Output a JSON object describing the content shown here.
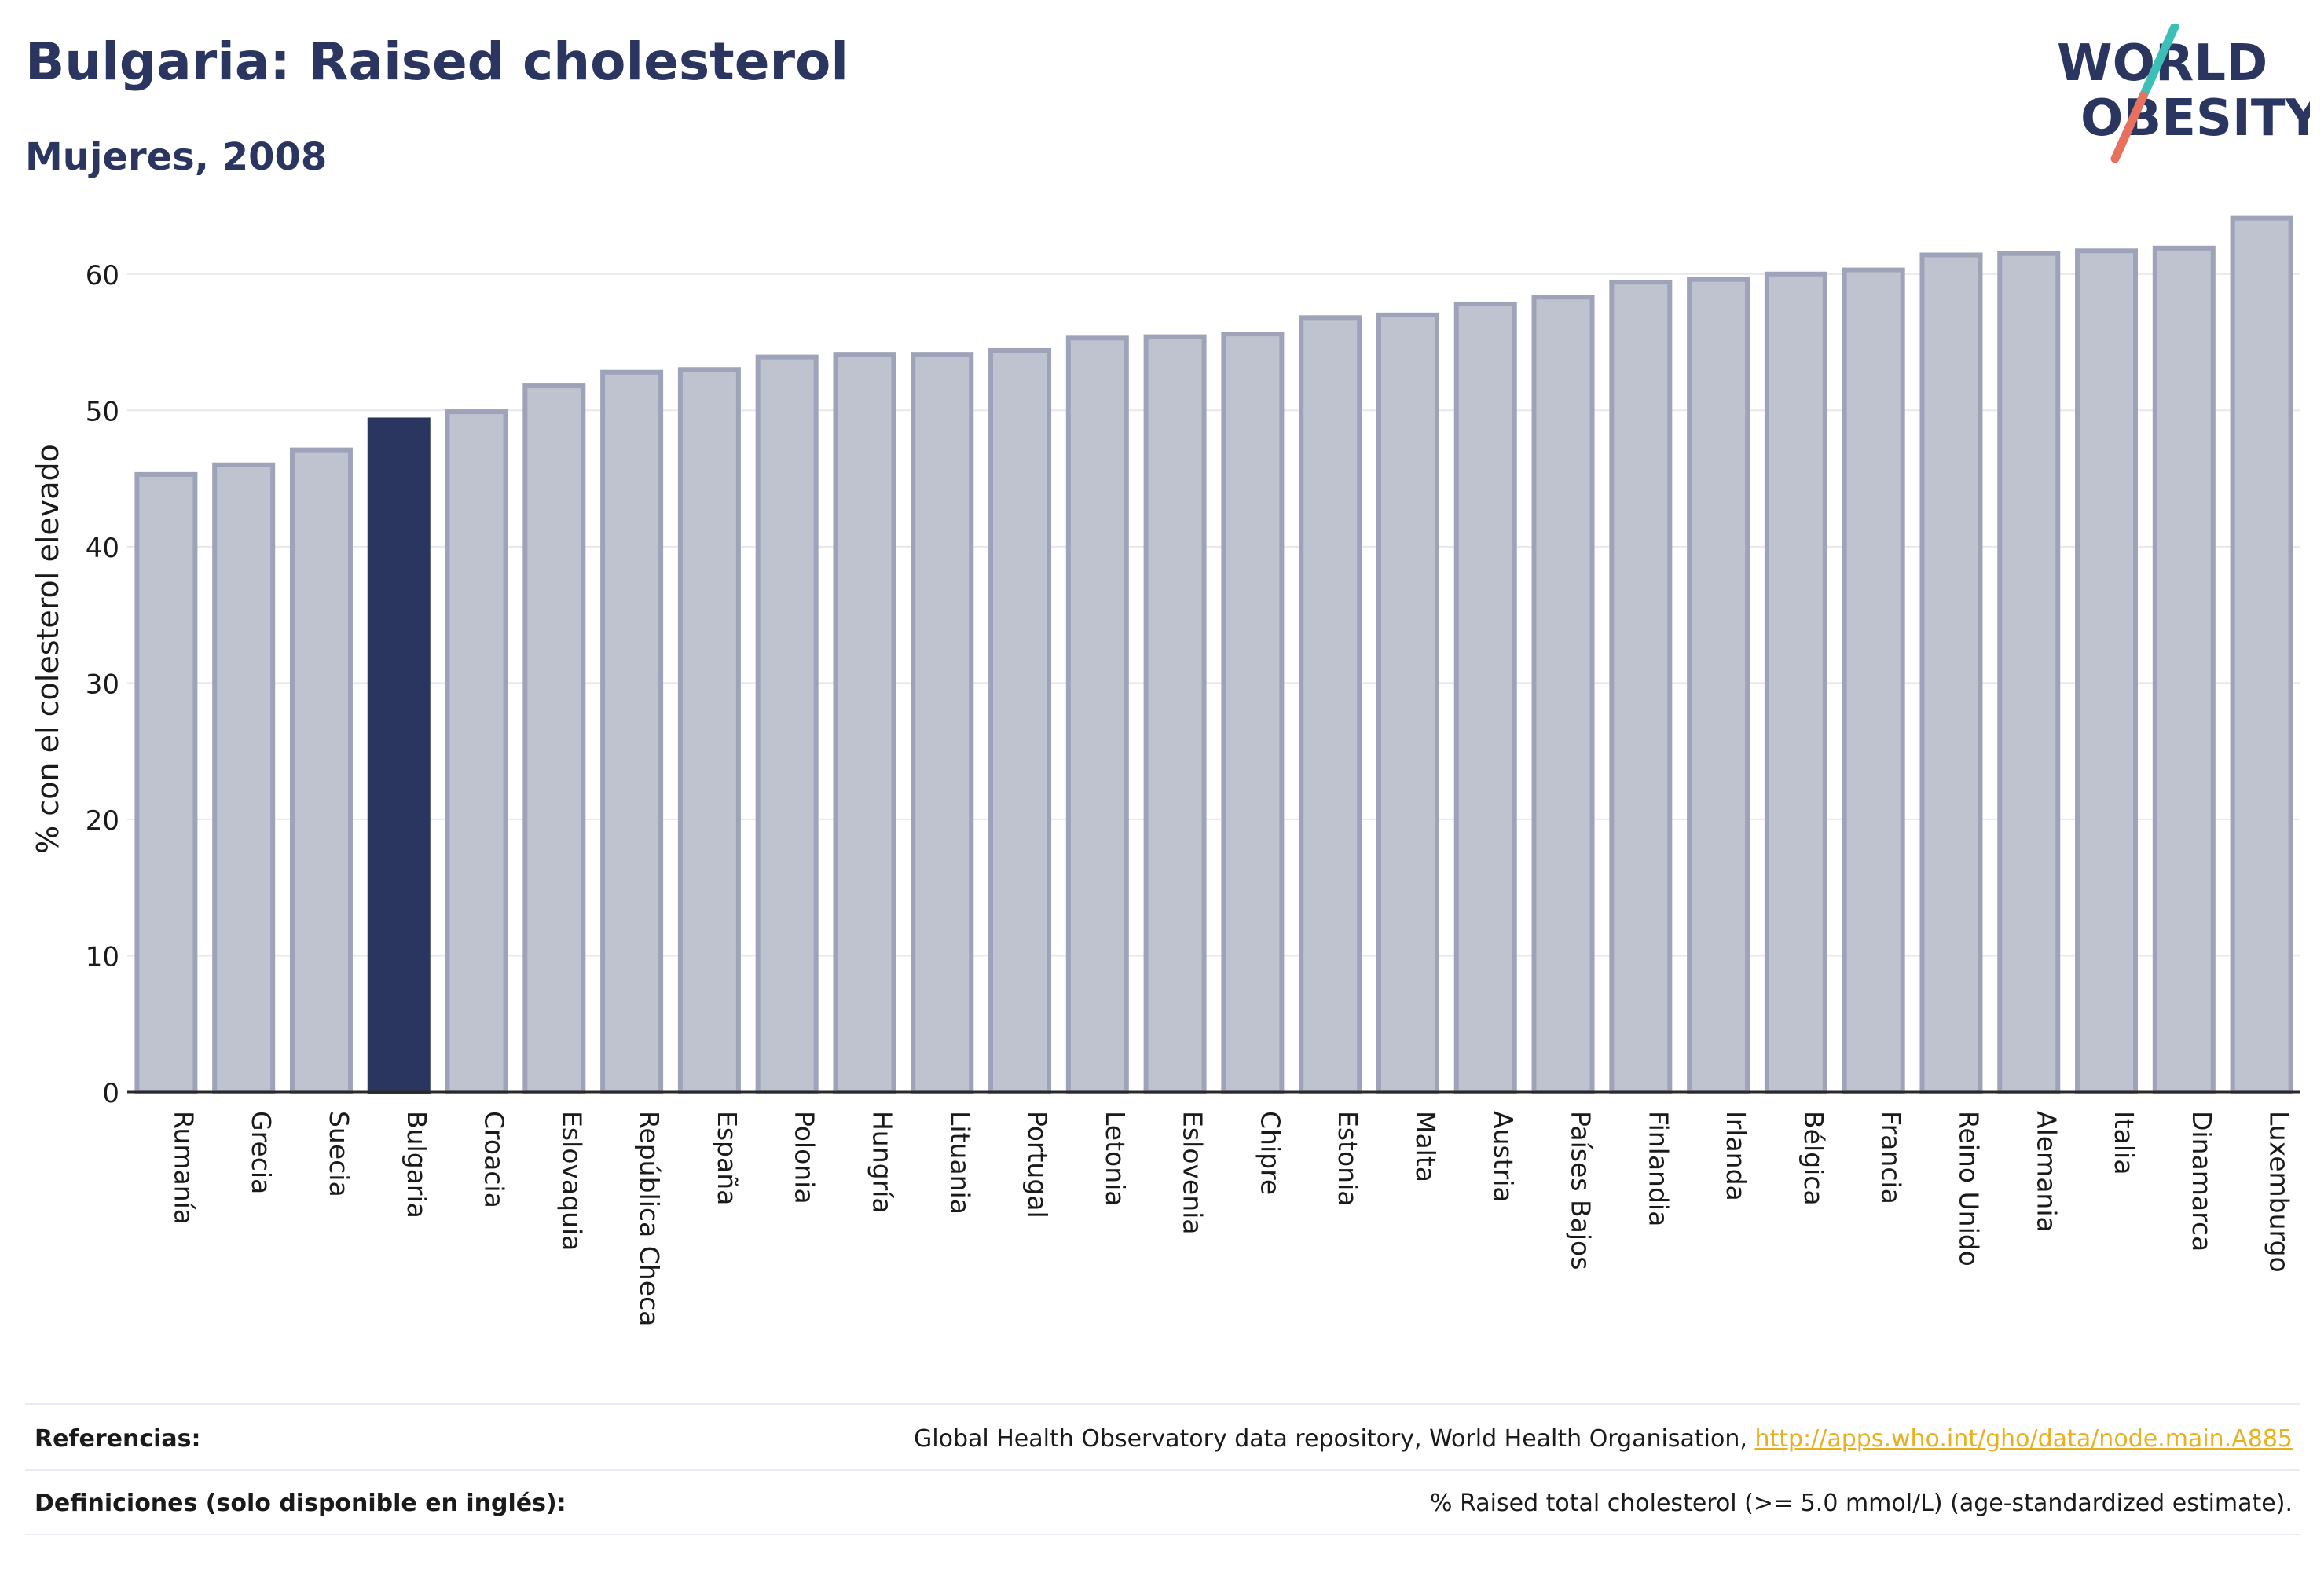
{
  "header": {
    "title": "Bulgaria: Raised cholesterol",
    "subtitle": "Mujeres, 2008"
  },
  "logo": {
    "line1": "WORLD",
    "line2": "OBESITY",
    "brand_color": "#2b3660",
    "accent_teal": "#3bbfb6",
    "accent_coral": "#e8705f"
  },
  "colors": {
    "highlight_bar": "#2b3660",
    "other_bar_fill": "#bfc2cf",
    "other_bar_stroke": "#9ea3ba",
    "link": "#e8b01e"
  },
  "chart_data": {
    "type": "bar",
    "title": "Bulgaria: Raised cholesterol",
    "subtitle": "Mujeres, 2008",
    "xlabel": "",
    "ylabel": "% con el colesterol elevado",
    "ylim": [
      0,
      65
    ],
    "yticks": [
      0,
      10,
      20,
      30,
      40,
      50,
      60
    ],
    "grid": true,
    "highlight": "Bulgaria",
    "categories": [
      "Rumanía",
      "Grecia",
      "Suecia",
      "Bulgaria",
      "Croacia",
      "Eslovaquia",
      "República Checa",
      "España",
      "Polonia",
      "Hungría",
      "Lituania",
      "Portugal",
      "Letonia",
      "Eslovenia",
      "Chipre",
      "Estonia",
      "Malta",
      "Austria",
      "Países Bajos",
      "Finlandia",
      "Irlanda",
      "Bélgica",
      "Francia",
      "Reino Unido",
      "Alemania",
      "Italia",
      "Dinamarca",
      "Luxemburgo"
    ],
    "values": [
      45.3,
      46.0,
      47.1,
      49.3,
      49.9,
      51.8,
      52.8,
      53.0,
      53.9,
      54.1,
      54.1,
      54.4,
      55.3,
      55.4,
      55.6,
      56.8,
      57.0,
      57.8,
      58.3,
      59.4,
      59.6,
      60.0,
      60.3,
      61.4,
      61.5,
      61.7,
      61.9,
      64.1
    ]
  },
  "footer": {
    "references_label": "Referencias:",
    "references_text": "Global Health Observatory data repository, World Health Organisation, ",
    "references_link": "http://apps.who.int/gho/data/node.main.A885",
    "definitions_label": "Definiciones (solo disponible en inglés):",
    "definitions_text": "% Raised total cholesterol (>= 5.0 mmol/L) (age-standardized estimate)."
  }
}
